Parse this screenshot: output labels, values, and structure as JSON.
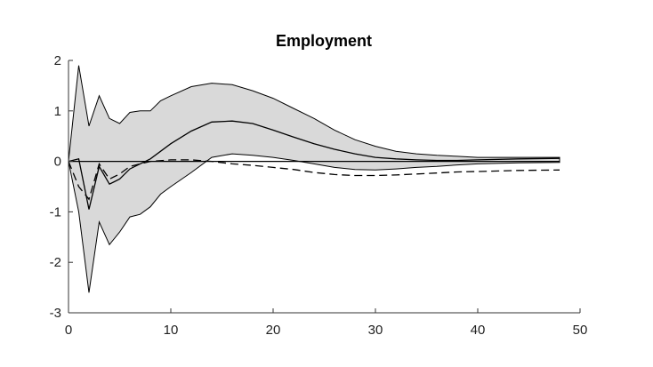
{
  "chart_data": {
    "type": "area",
    "title": "Employment",
    "xlabel": "",
    "ylabel": "",
    "xlim": [
      0,
      50
    ],
    "ylim": [
      -3,
      2
    ],
    "xticks": [
      0,
      10,
      20,
      30,
      40,
      50
    ],
    "yticks": [
      -3,
      -2,
      -1,
      0,
      1,
      2
    ],
    "grid": false,
    "legend": "none",
    "zero_line": 0,
    "colors": {
      "band_fill": "#d9d9d9",
      "line": "#000000",
      "axis": "#333333"
    },
    "series": [
      {
        "style": "band",
        "x": [
          0,
          1,
          2,
          3,
          4,
          5,
          6,
          7,
          8,
          9,
          10,
          12,
          14,
          16,
          18,
          20,
          22,
          24,
          26,
          28,
          30,
          32,
          34,
          36,
          38,
          40,
          44,
          48
        ],
        "upper": [
          0,
          1.9,
          0.7,
          1.3,
          0.85,
          0.75,
          0.97,
          1.0,
          1.0,
          1.2,
          1.3,
          1.48,
          1.55,
          1.52,
          1.4,
          1.25,
          1.05,
          0.85,
          0.62,
          0.43,
          0.3,
          0.2,
          0.15,
          0.12,
          0.1,
          0.08,
          0.08,
          0.08
        ],
        "lower": [
          0,
          -1.0,
          -2.6,
          -1.2,
          -1.65,
          -1.4,
          -1.1,
          -1.05,
          -0.9,
          -0.65,
          -0.5,
          -0.22,
          0.08,
          0.15,
          0.12,
          0.08,
          0.02,
          -0.05,
          -0.12,
          -0.16,
          -0.17,
          -0.15,
          -0.12,
          -0.1,
          -0.07,
          -0.05,
          -0.03,
          -0.02
        ]
      },
      {
        "style": "solid",
        "x": [
          0,
          1,
          2,
          3,
          4,
          5,
          6,
          8,
          10,
          12,
          14,
          16,
          18,
          20,
          22,
          24,
          26,
          28,
          30,
          32,
          34,
          36,
          38,
          40,
          44,
          48
        ],
        "y": [
          0,
          0.05,
          -0.95,
          -0.1,
          -0.45,
          -0.35,
          -0.15,
          0.05,
          0.35,
          0.6,
          0.78,
          0.8,
          0.75,
          0.62,
          0.48,
          0.35,
          0.24,
          0.15,
          0.08,
          0.05,
          0.03,
          0.02,
          0.02,
          0.03,
          0.05,
          0.06
        ]
      },
      {
        "style": "dashed",
        "x": [
          0,
          1,
          2,
          3,
          4,
          5,
          6,
          8,
          10,
          12,
          14,
          16,
          18,
          20,
          22,
          24,
          26,
          28,
          30,
          32,
          34,
          36,
          38,
          40,
          44,
          48
        ],
        "y": [
          0,
          -0.5,
          -0.75,
          -0.05,
          -0.35,
          -0.25,
          -0.1,
          0.0,
          0.03,
          0.03,
          0.0,
          -0.05,
          -0.08,
          -0.12,
          -0.16,
          -0.22,
          -0.26,
          -0.28,
          -0.28,
          -0.27,
          -0.25,
          -0.23,
          -0.21,
          -0.2,
          -0.18,
          -0.17
        ]
      }
    ]
  }
}
